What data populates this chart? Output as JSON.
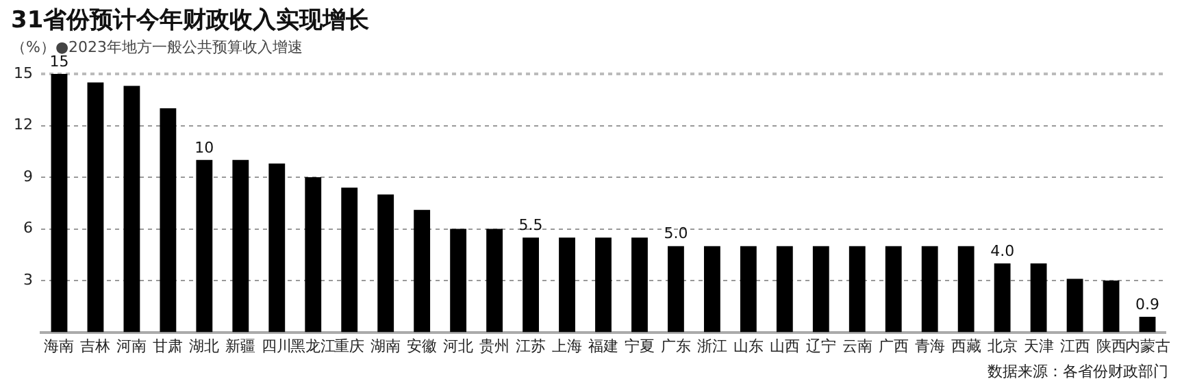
{
  "chart_data": {
    "type": "bar",
    "title": "31省份预计今年财政收入实现增长",
    "subtitle": "（%）●2023年地方一般公共预算收入增速",
    "categories": [
      "海南",
      "吉林",
      "河南",
      "甘肃",
      "湖北",
      "新疆",
      "四川",
      "黑龙江",
      "重庆",
      "湖南",
      "安徽",
      "河北",
      "贵州",
      "江苏",
      "上海",
      "福建",
      "宁夏",
      "广东",
      "浙江",
      "山东",
      "山西",
      "辽宁",
      "云南",
      "广西",
      "青海",
      "西藏",
      "北京",
      "天津",
      "江西",
      "陕西",
      "内蒙古"
    ],
    "values": [
      15,
      14.5,
      14.3,
      13,
      10,
      10,
      9.8,
      9,
      8.4,
      8,
      7.1,
      6,
      6,
      5.5,
      5.5,
      5.5,
      5.5,
      5,
      5,
      5,
      5,
      5,
      5,
      5,
      5,
      5,
      4,
      4,
      3.1,
      3,
      0.9
    ],
    "value_labels": [
      "15",
      null,
      null,
      null,
      "10",
      null,
      null,
      null,
      null,
      null,
      null,
      null,
      null,
      "5.5",
      null,
      null,
      null,
      "5.0",
      null,
      null,
      null,
      null,
      null,
      null,
      null,
      null,
      "4.0",
      null,
      null,
      null,
      "0.9"
    ],
    "color": "#000000",
    "ylim": [
      0,
      15
    ],
    "yticks": [
      3,
      6,
      9,
      12,
      15
    ],
    "grid": "y",
    "annotations": [
      "数据来源：各省份财政部门"
    ]
  }
}
